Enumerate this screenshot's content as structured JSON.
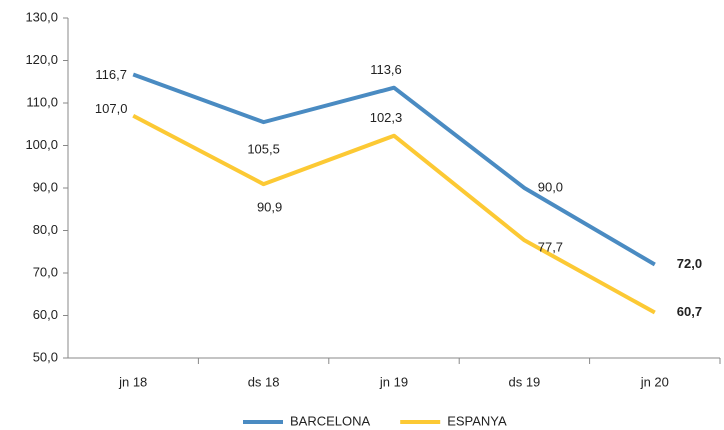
{
  "chart_data": {
    "type": "line",
    "categories": [
      "jn 18",
      "ds 18",
      "jn 19",
      "ds 19",
      "jn 20"
    ],
    "series": [
      {
        "name": "BARCELONA",
        "color": "#4a8bc2",
        "values": [
          116.7,
          105.5,
          113.6,
          90.0,
          72.0
        ],
        "value_labels": [
          "116,7",
          "105,5",
          "113,6",
          "90,0",
          "72,0"
        ]
      },
      {
        "name": "ESPANYA",
        "color": "#fcc934",
        "values": [
          107.0,
          90.9,
          102.3,
          77.7,
          60.7
        ],
        "value_labels": [
          "107,0",
          "90,9",
          "102,3",
          "77,7",
          "60,7"
        ]
      }
    ],
    "ylim": [
      50,
      130
    ],
    "yticks": [
      {
        "value": 50,
        "label": "50,0"
      },
      {
        "value": 60,
        "label": "60,0"
      },
      {
        "value": 70,
        "label": "70,0"
      },
      {
        "value": 80,
        "label": "80,0"
      },
      {
        "value": 90,
        "label": "90,0"
      },
      {
        "value": 100,
        "label": "100,0"
      },
      {
        "value": 110,
        "label": "110,0"
      },
      {
        "value": 120,
        "label": "120,0"
      },
      {
        "value": 130,
        "label": "130,0"
      }
    ],
    "grid": false
  }
}
